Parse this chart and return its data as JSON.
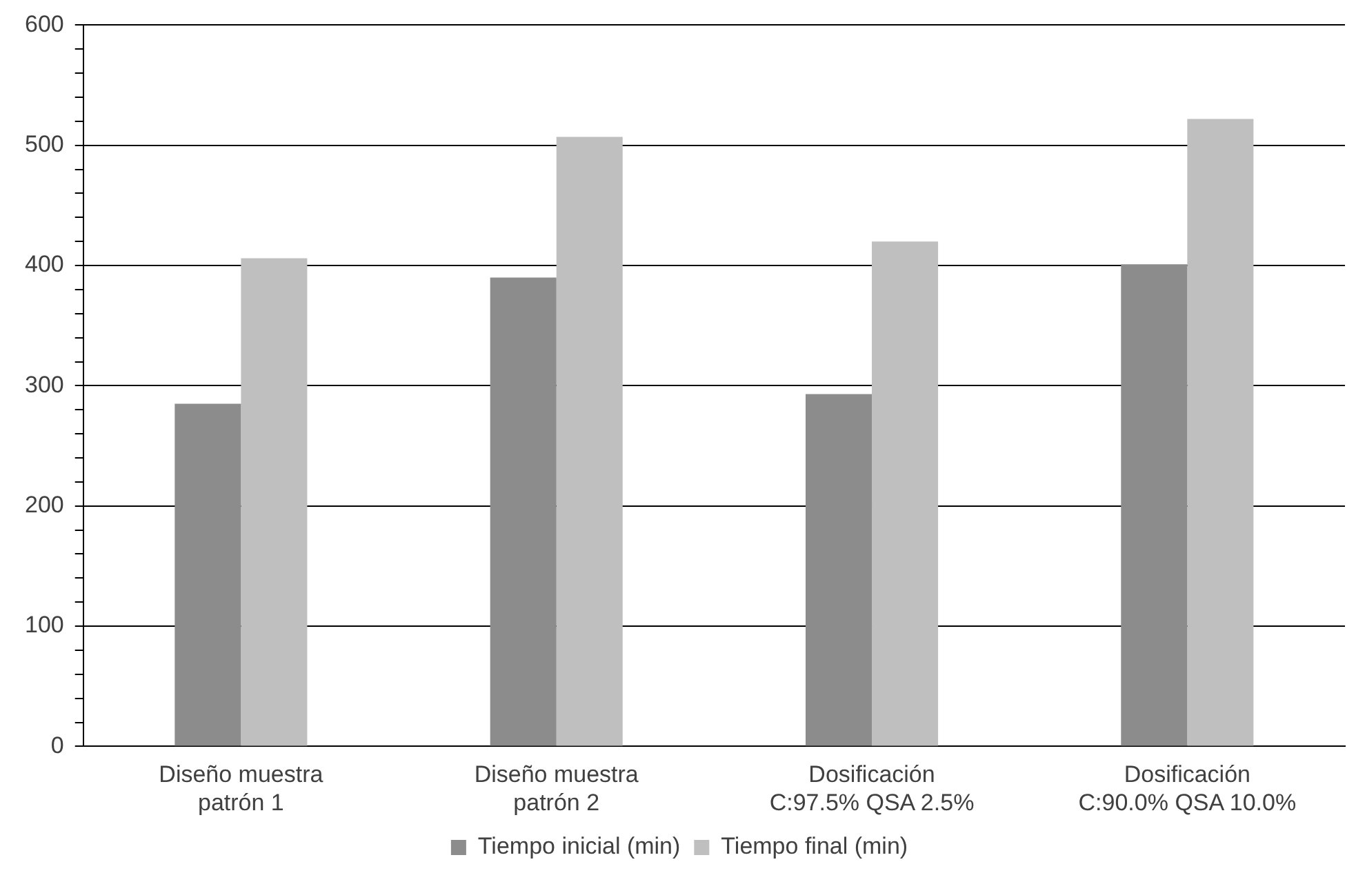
{
  "chart_data": {
    "type": "bar",
    "categories": [
      "Diseño muestra\npatrón 1",
      "Diseño muestra\npatrón 2",
      "Dosificación\nC:97.5% QSA 2.5%",
      "Dosificación\nC:90.0% QSA 10.0%"
    ],
    "series": [
      {
        "name": "Tiempo inicial (min)",
        "color": "#8c8c8c",
        "values": [
          285,
          390,
          293,
          401
        ]
      },
      {
        "name": "Tiempo final (min)",
        "color": "#bfbfbf",
        "values": [
          406,
          507,
          420,
          522
        ]
      }
    ],
    "ylim": [
      0,
      600
    ],
    "yticks": [
      0,
      {
        "value": 20,
        "label": null
      },
      {
        "value": 40,
        "label": null
      },
      {
        "value": 60,
        "label": null
      },
      {
        "value": 80,
        "label": null
      },
      100,
      {
        "value": 120,
        "label": null
      },
      {
        "value": 140,
        "label": null
      },
      {
        "value": 160,
        "label": null
      },
      {
        "value": 180,
        "label": null
      },
      200,
      {
        "value": 220,
        "label": null
      },
      {
        "value": 240,
        "label": null
      },
      {
        "value": 260,
        "label": null
      },
      {
        "value": 280,
        "label": null
      },
      300,
      {
        "value": 320,
        "label": null
      },
      {
        "value": 340,
        "label": null
      },
      {
        "value": 360,
        "label": null
      },
      {
        "value": 380,
        "label": null
      },
      400,
      {
        "value": 420,
        "label": null
      },
      {
        "value": 440,
        "label": null
      },
      {
        "value": 460,
        "label": null
      },
      {
        "value": 480,
        "label": null
      },
      500,
      {
        "value": 520,
        "label": null
      },
      {
        "value": 540,
        "label": null
      },
      {
        "value": 560,
        "label": null
      },
      {
        "value": 580,
        "label": null
      },
      600
    ],
    "grid": "y",
    "legend": "bottom"
  }
}
